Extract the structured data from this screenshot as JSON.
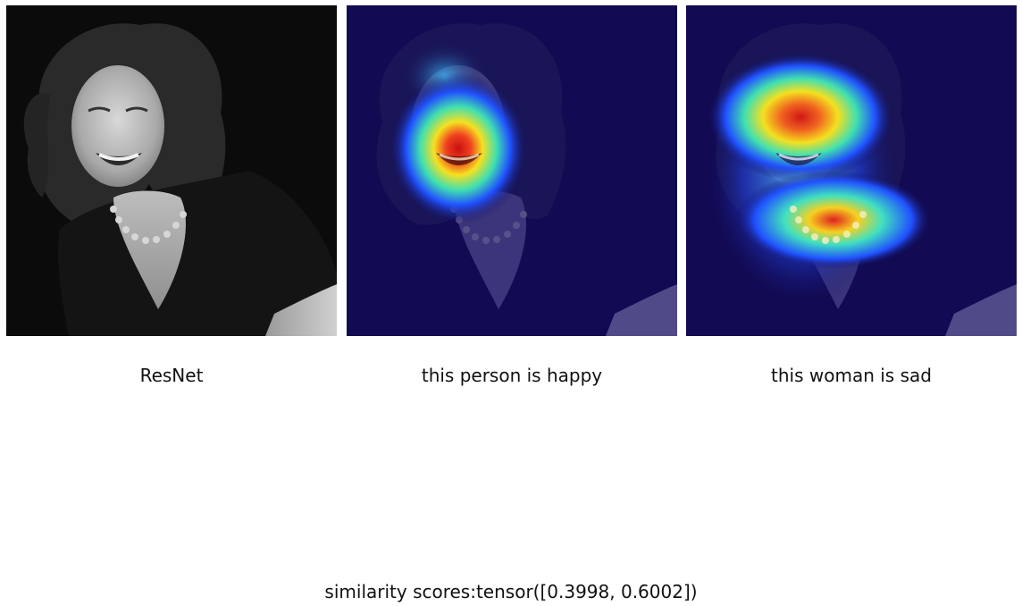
{
  "panels": [
    {
      "caption": "ResNet",
      "style": "grayscale-original"
    },
    {
      "caption": "this person is happy",
      "style": "jet-heatmap-overlay",
      "focus": "mouth-and-cheeks"
    },
    {
      "caption": "this woman is sad",
      "style": "jet-heatmap-overlay",
      "focus": "eyes-and-necklace"
    }
  ],
  "footer": {
    "text": "similarity scores:tensor([0.3998, 0.6002])"
  },
  "colors": {
    "background": "#ffffff",
    "photo_dark": "#0b0b0b",
    "overlay_base": "#120a52",
    "text": "#111111"
  }
}
